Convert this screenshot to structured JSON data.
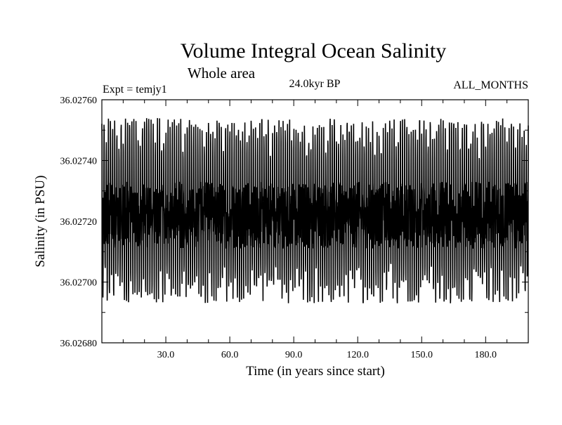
{
  "chart_data": {
    "type": "line",
    "title": "Volume Integral Ocean Salinity",
    "subtitle": "Whole area",
    "annotations": {
      "left": "Expt = temjy1",
      "center": "24.0kyr BP",
      "right": "ALL_MONTHS"
    },
    "xlabel": "Time (in years since start)",
    "ylabel": "Salinity (in PSU)",
    "xlim": [
      0,
      200
    ],
    "ylim": [
      36.0268,
      36.0276
    ],
    "x_ticks": [
      30,
      60,
      90,
      120,
      150,
      180
    ],
    "x_tick_labels": [
      "30.0",
      "60.0",
      "90.0",
      "120.0",
      "150.0",
      "180.0"
    ],
    "y_ticks": [
      36.0268,
      36.027,
      36.0272,
      36.0274,
      36.0276
    ],
    "y_tick_labels": [
      "36.02680",
      "36.02700",
      "36.02720",
      "36.02740",
      "36.02760"
    ],
    "grid": false,
    "series": [
      {
        "color": "#000000",
        "sampling": "monthly (annual cycle)",
        "mean": 36.02722,
        "typical_annual_max": 36.02747,
        "typical_annual_min": 36.027,
        "overall_max": 36.02756,
        "overall_min": 36.02689,
        "x_start": 0,
        "x_end": 200
      }
    ]
  }
}
